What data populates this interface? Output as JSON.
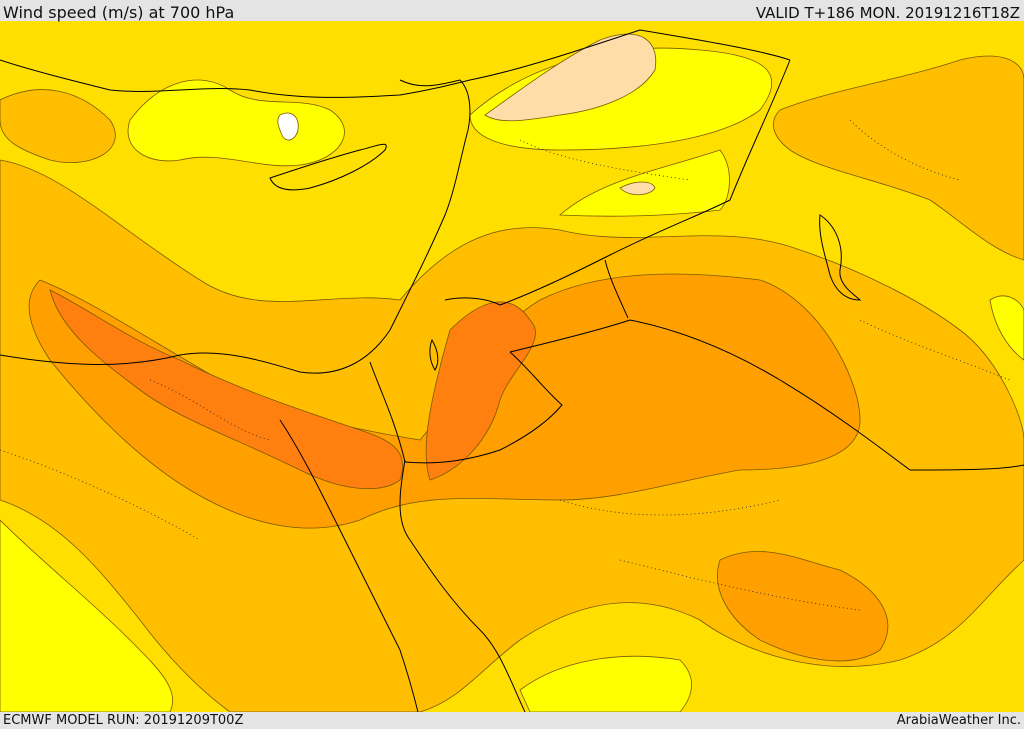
{
  "header": {
    "title": "Wind speed (m/s) at 700 hPa",
    "valid": "VALID T+186 MON. 20191216T18Z"
  },
  "footer": {
    "model_run": "ECMWF MODEL RUN: 20191209T00Z",
    "credit": "ArabiaWeather Inc."
  },
  "map": {
    "field": "wind speed",
    "level": "700 hPa",
    "colors": {
      "level_1": "#ffff00",
      "level_2": "#ffdf00",
      "level_3": "#ffbf00",
      "level_4": "#ff9f00",
      "level_5": "#ff7f0f",
      "calm": "#ffffff",
      "strong": "#ffdda8",
      "contour": "#7a5a00",
      "coastline": "#000000",
      "border": "#000000"
    }
  }
}
